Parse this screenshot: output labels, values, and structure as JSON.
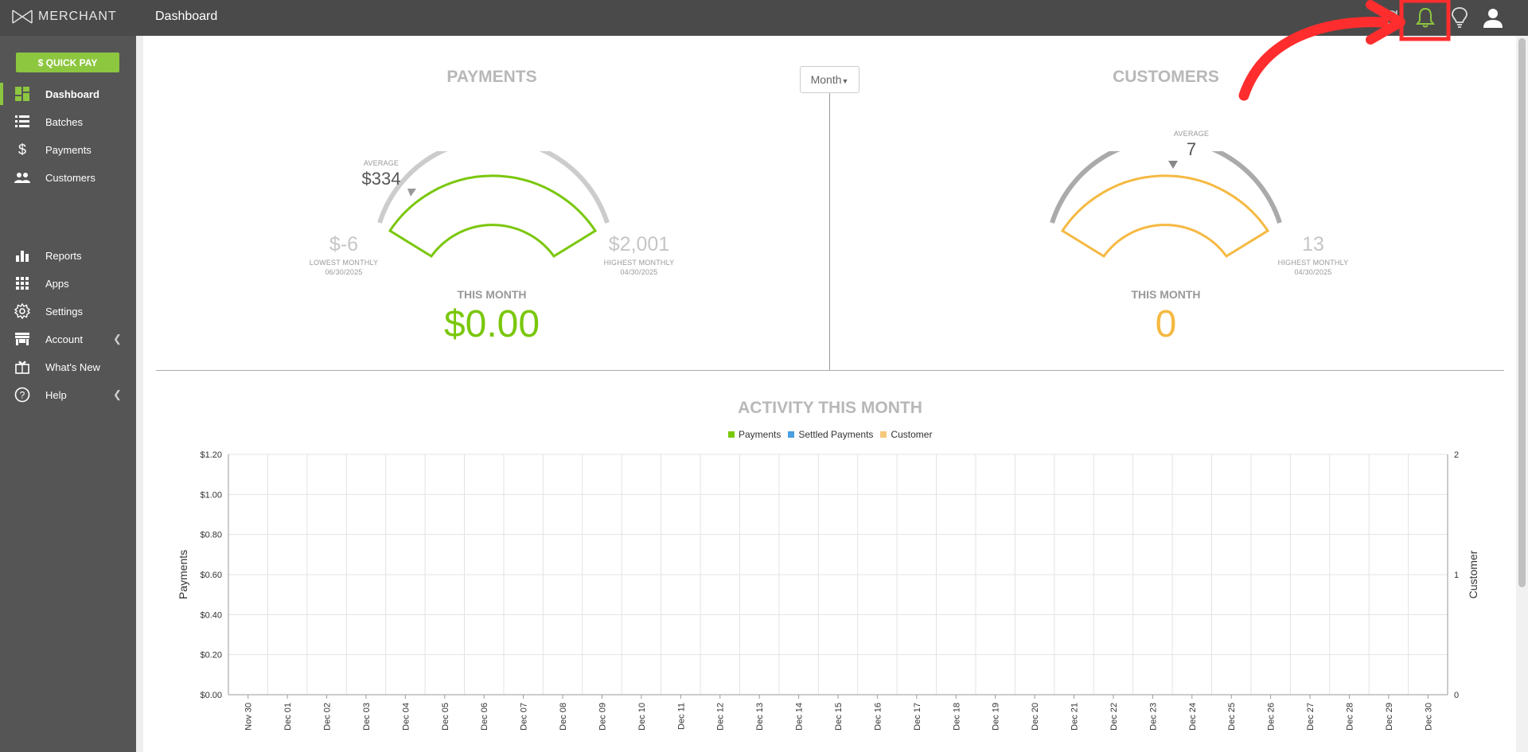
{
  "app": {
    "brand": "MERCHANT",
    "page_title": "Dashboard"
  },
  "topbar": {
    "icons": [
      "refresh-icon",
      "bell-icon",
      "lightbulb-icon",
      "user-icon"
    ],
    "bell_color": "#8dc63f",
    "highlight_color": "#ff2d2d"
  },
  "sidebar": {
    "quick_pay": "$ QUICK PAY",
    "items": [
      {
        "label": "Dashboard",
        "icon": "dashboard-icon",
        "active": true
      },
      {
        "label": "Batches",
        "icon": "list-icon"
      },
      {
        "label": "Payments",
        "icon": "dollar-icon"
      },
      {
        "label": "Customers",
        "icon": "people-icon"
      },
      {
        "label": "Reports",
        "icon": "bar-chart-icon"
      },
      {
        "label": "Apps",
        "icon": "grid-icon"
      },
      {
        "label": "Settings",
        "icon": "gear-icon"
      },
      {
        "label": "Account",
        "icon": "store-icon",
        "chevron": true
      },
      {
        "label": "What's New",
        "icon": "gift-icon"
      },
      {
        "label": "Help",
        "icon": "question-icon",
        "chevron": true
      }
    ]
  },
  "period_button": "Month",
  "payments": {
    "title": "PAYMENTS",
    "average_label": "AVERAGE",
    "average": "$334",
    "lowest": "$-6",
    "lowest_label": "LOWEST MONTHLY",
    "lowest_date": "06/30/2025",
    "highest": "$2,001",
    "highest_label": "HIGHEST MONTHLY",
    "highest_date": "04/30/2025",
    "this_month_label": "THIS MONTH",
    "this_month": "$0.00",
    "color": "#7ac70c"
  },
  "customers": {
    "title": "CUSTOMERS",
    "average_label": "AVERAGE",
    "average": "7",
    "highest": "13",
    "highest_label": "HIGHEST MONTHLY",
    "highest_date": "04/30/2025",
    "this_month_label": "THIS MONTH",
    "this_month": "0",
    "color": "#f5b942"
  },
  "activity": {
    "title": "ACTIVITY THIS MONTH",
    "legend": [
      {
        "name": "Payments",
        "color": "#7ac70c"
      },
      {
        "name": "Settled Payments",
        "color": "#4a9fe0"
      },
      {
        "name": "Customer",
        "color": "#f5c87a"
      }
    ]
  },
  "chart_data": {
    "type": "bar",
    "title": "ACTIVITY THIS MONTH",
    "ylabel": "Payments",
    "y2label": "Customer",
    "ylim": [
      0,
      1.2
    ],
    "y2lim": [
      0,
      2
    ],
    "yticks": [
      "$0.00",
      "$0.20",
      "$0.40",
      "$0.60",
      "$0.80",
      "$1.00",
      "$1.20"
    ],
    "y2ticks": [
      "0",
      "1",
      "2"
    ],
    "grid": true,
    "legend_position": "top",
    "categories": [
      "Nov 30",
      "Dec 01",
      "Dec 02",
      "Dec 03",
      "Dec 04",
      "Dec 05",
      "Dec 06",
      "Dec 07",
      "Dec 08",
      "Dec 09",
      "Dec 10",
      "Dec 11",
      "Dec 12",
      "Dec 13",
      "Dec 14",
      "Dec 15",
      "Dec 16",
      "Dec 17",
      "Dec 18",
      "Dec 19",
      "Dec 20",
      "Dec 21",
      "Dec 22",
      "Dec 23",
      "Dec 24",
      "Dec 25",
      "Dec 26",
      "Dec 27",
      "Dec 28",
      "Dec 29",
      "Dec 30"
    ],
    "series": [
      {
        "name": "Payments",
        "values": [
          0,
          0,
          0,
          0,
          0,
          0,
          0,
          0,
          0,
          0,
          0,
          0,
          0,
          0,
          0,
          0,
          0,
          0,
          0,
          0,
          0,
          0,
          0,
          0,
          0,
          0,
          0,
          0,
          0,
          0,
          0
        ]
      },
      {
        "name": "Settled Payments",
        "values": [
          0,
          0,
          0,
          0,
          0,
          0,
          0,
          0,
          0,
          0,
          0,
          0,
          0,
          0,
          0,
          0,
          0,
          0,
          0,
          0,
          0,
          0,
          0,
          0,
          0,
          0,
          0,
          0,
          0,
          0,
          0
        ]
      },
      {
        "name": "Customer",
        "values": [
          0,
          0,
          0,
          0,
          0,
          0,
          0,
          0,
          0,
          0,
          0,
          0,
          0,
          0,
          0,
          0,
          0,
          0,
          0,
          0,
          0,
          0,
          0,
          0,
          0,
          0,
          0,
          0,
          0,
          0,
          0
        ]
      }
    ]
  }
}
